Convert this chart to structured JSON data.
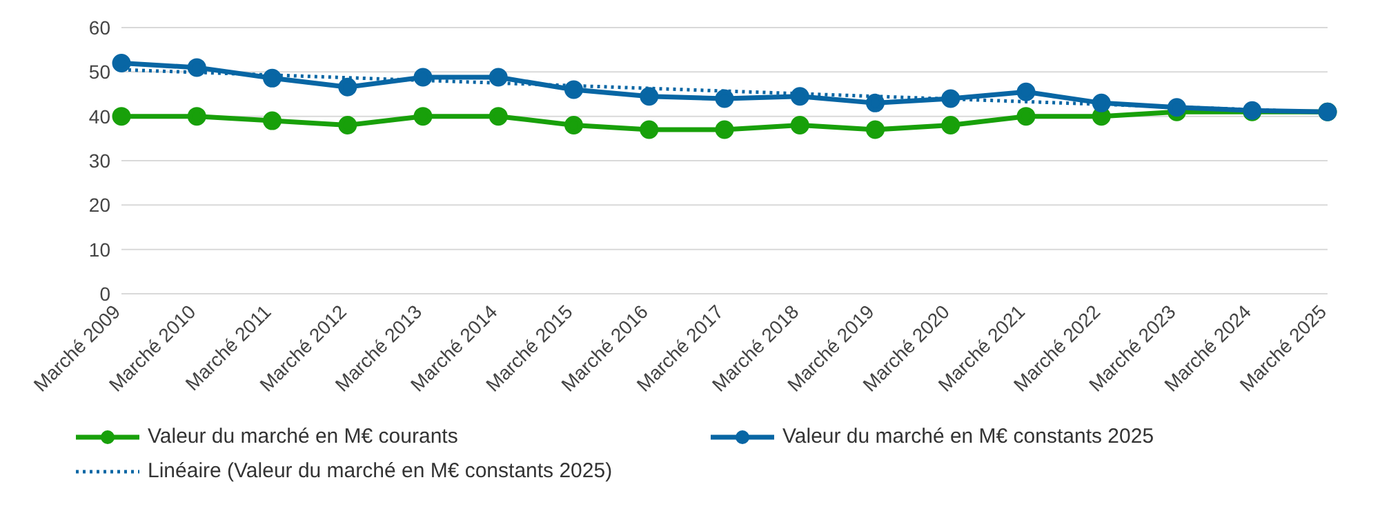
{
  "chart_data": {
    "type": "line",
    "categories": [
      "Marché 2009",
      "Marché 2010",
      "Marché 2011",
      "Marché 2012",
      "Marché 2013",
      "Marché 2014",
      "Marché 2015",
      "Marché 2016",
      "Marché 2017",
      "Marché 2018",
      "Marché 2019",
      "Marché 2020",
      "Marché 2021",
      "Marché 2022",
      "Marché 2023",
      "Marché 2024",
      "Marché 2025"
    ],
    "series": [
      {
        "name": "Valeur du marché en M€ courants",
        "color": "#18a00a",
        "values": [
          40,
          40,
          39,
          38,
          40,
          40,
          38,
          37,
          37,
          38,
          37,
          38,
          40,
          40,
          41,
          41,
          41
        ]
      },
      {
        "name": "Valeur du marché en M€ constants 2025",
        "color": "#0866a4",
        "values": [
          52,
          51,
          48.6,
          46.6,
          48.8,
          48.8,
          46,
          44.5,
          44,
          44.5,
          43,
          44,
          45.5,
          43,
          42,
          41.3,
          41
        ]
      },
      {
        "name": "Linéaire (Valeur du marché en M€ constants 2025)",
        "color": "#0866a4",
        "line_style": "dotted",
        "marker": "none",
        "values": [
          50.5,
          49.9,
          49.3,
          48.7,
          48.1,
          47.5,
          46.9,
          46.3,
          45.7,
          45.1,
          44.5,
          43.9,
          43.3,
          42.7,
          42.1,
          41.5,
          40.9
        ]
      }
    ],
    "ylim": [
      0,
      60
    ],
    "yticks": [
      0,
      10,
      20,
      30,
      40,
      50,
      60
    ],
    "grid": "y",
    "legend": "bottom",
    "marker": "circle",
    "line_style": "solid"
  }
}
